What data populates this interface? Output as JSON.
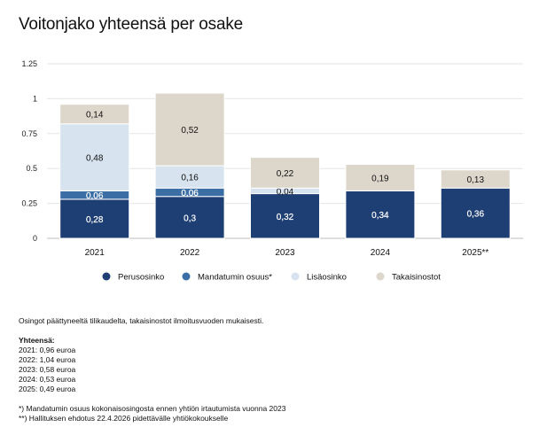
{
  "title": "Voitonjako yhteensä per osake",
  "chart_data": {
    "type": "bar",
    "stacked": true,
    "categories": [
      "2021",
      "2022",
      "2023",
      "2024",
      "2025**"
    ],
    "series": [
      {
        "name": "Perusosinko",
        "color": "#1e3f73",
        "values": [
          0.28,
          0.3,
          0.32,
          0.34,
          0.36
        ],
        "labels": [
          "0,28",
          "0,3",
          "0,32",
          "0,34",
          "0,36"
        ]
      },
      {
        "name": "Mandatumin osuus*",
        "color": "#3a6ea5",
        "values": [
          0.06,
          0.06,
          0.0,
          0.0,
          0.0
        ],
        "labels": [
          "0,06",
          "0,06",
          "",
          "",
          ""
        ]
      },
      {
        "name": "Lisäosinko",
        "color": "#d7e3ef",
        "values": [
          0.48,
          0.16,
          0.04,
          0.0,
          0.0
        ],
        "labels": [
          "0,48",
          "0,16",
          "0,04",
          "",
          ""
        ]
      },
      {
        "name": "Takaisinostot",
        "color": "#dcd6cb",
        "values": [
          0.14,
          0.52,
          0.22,
          0.19,
          0.13
        ],
        "labels": [
          "0,14",
          "0,52",
          "0,22",
          "0,19",
          "0,13"
        ]
      }
    ],
    "ylim": [
      0,
      1.25
    ],
    "yticks": [
      0,
      0.25,
      0.5,
      0.75,
      1,
      1.25
    ],
    "ytick_labels": [
      "0",
      "0.25",
      "0.5",
      "0.75",
      "1",
      "1.25"
    ],
    "grid": true,
    "legend_position": "bottom"
  },
  "notes": {
    "source": "Osingot päättyneeltä tilikaudelta, takaisinostot ilmoitusvuoden mukaisesti.",
    "totals_heading": "Yhteensä:",
    "totals": [
      "2021: 0,96 euroa",
      "2022: 1,04 euroa",
      "2023: 0,58 euroa",
      "2024: 0,53 euroa",
      "2025: 0,49 euroa"
    ],
    "footnotes": [
      "*) Mandatumin osuus kokonaisosingosta ennen yhtiön irtautumista vuonna 2023",
      "**) Hallituksen ehdotus 22.4.2026 pidettävälle yhtiökokoukselle"
    ]
  }
}
